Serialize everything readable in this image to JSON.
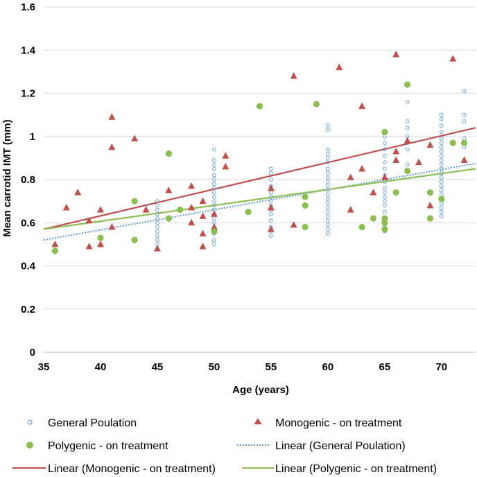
{
  "chart_data": {
    "type": "scatter",
    "title": "",
    "xlabel": "Age (years)",
    "ylabel": "Mean carrotid IMT (mm)",
    "xlim": [
      35,
      73
    ],
    "ylim": [
      0,
      1.6
    ],
    "xticks": [
      "35",
      "40",
      "45",
      "50",
      "55",
      "60",
      "65",
      "70"
    ],
    "yticks": [
      "0",
      "0.2",
      "0.4",
      "0.6",
      "0.8",
      "1",
      "1.2",
      "1.4",
      "1.6"
    ],
    "grid": "horizontal",
    "legend_position": "bottom",
    "colors": {
      "general": "#5b9bd5",
      "monogenic": "#c0504d",
      "polygenic": "#8cbe52",
      "grid": "#d9d9d9"
    },
    "series": [
      {
        "name": "General Poulation",
        "marker": "open-circle",
        "points": [
          [
            45,
            0.48
          ],
          [
            45,
            0.5
          ],
          [
            45,
            0.52
          ],
          [
            45,
            0.54
          ],
          [
            45,
            0.56
          ],
          [
            45,
            0.58
          ],
          [
            45,
            0.6
          ],
          [
            45,
            0.62
          ],
          [
            45,
            0.64
          ],
          [
            45,
            0.66
          ],
          [
            45,
            0.68
          ],
          [
            45,
            0.7
          ],
          [
            50,
            0.5
          ],
          [
            50,
            0.52
          ],
          [
            50,
            0.55
          ],
          [
            50,
            0.57
          ],
          [
            50,
            0.6
          ],
          [
            50,
            0.62
          ],
          [
            50,
            0.64
          ],
          [
            50,
            0.66
          ],
          [
            50,
            0.68
          ],
          [
            50,
            0.7
          ],
          [
            50,
            0.72
          ],
          [
            50,
            0.74
          ],
          [
            50,
            0.76
          ],
          [
            50,
            0.78
          ],
          [
            50,
            0.8
          ],
          [
            50,
            0.82
          ],
          [
            50,
            0.85
          ],
          [
            50,
            0.87
          ],
          [
            50,
            0.89
          ],
          [
            50,
            0.94
          ],
          [
            55,
            0.54
          ],
          [
            55,
            0.56
          ],
          [
            55,
            0.58
          ],
          [
            55,
            0.61
          ],
          [
            55,
            0.64
          ],
          [
            55,
            0.66
          ],
          [
            55,
            0.68
          ],
          [
            55,
            0.7
          ],
          [
            55,
            0.72
          ],
          [
            55,
            0.74
          ],
          [
            55,
            0.77
          ],
          [
            55,
            0.8
          ],
          [
            55,
            0.83
          ],
          [
            55,
            0.85
          ],
          [
            60,
            0.55
          ],
          [
            60,
            0.57
          ],
          [
            60,
            0.59
          ],
          [
            60,
            0.61
          ],
          [
            60,
            0.63
          ],
          [
            60,
            0.65
          ],
          [
            60,
            0.67
          ],
          [
            60,
            0.69
          ],
          [
            60,
            0.71
          ],
          [
            60,
            0.73
          ],
          [
            60,
            0.75
          ],
          [
            60,
            0.77
          ],
          [
            60,
            0.79
          ],
          [
            60,
            0.81
          ],
          [
            60,
            0.83
          ],
          [
            60,
            0.85
          ],
          [
            60,
            0.88
          ],
          [
            60,
            0.9
          ],
          [
            60,
            0.92
          ],
          [
            60,
            0.94
          ],
          [
            60,
            1.03
          ],
          [
            60,
            1.05
          ],
          [
            65,
            0.56
          ],
          [
            65,
            0.58
          ],
          [
            65,
            0.6
          ],
          [
            65,
            0.62
          ],
          [
            65,
            0.65
          ],
          [
            65,
            0.68
          ],
          [
            65,
            0.7
          ],
          [
            65,
            0.72
          ],
          [
            65,
            0.74
          ],
          [
            65,
            0.76
          ],
          [
            65,
            0.79
          ],
          [
            65,
            0.82
          ],
          [
            65,
            0.85
          ],
          [
            65,
            0.88
          ],
          [
            65,
            0.91
          ],
          [
            65,
            0.94
          ],
          [
            65,
            0.97
          ],
          [
            65,
            1.0
          ],
          [
            67,
            0.87
          ],
          [
            67,
            0.94
          ],
          [
            67,
            0.97
          ],
          [
            67,
            1.0
          ],
          [
            67,
            1.04
          ],
          [
            67,
            1.07
          ],
          [
            67,
            1.16
          ],
          [
            70,
            0.63
          ],
          [
            70,
            0.65
          ],
          [
            70,
            0.67
          ],
          [
            70,
            0.69
          ],
          [
            70,
            0.71
          ],
          [
            70,
            0.73
          ],
          [
            70,
            0.75
          ],
          [
            70,
            0.77
          ],
          [
            70,
            0.79
          ],
          [
            70,
            0.81
          ],
          [
            70,
            0.83
          ],
          [
            70,
            0.85
          ],
          [
            70,
            0.87
          ],
          [
            70,
            0.89
          ],
          [
            70,
            0.91
          ],
          [
            70,
            0.93
          ],
          [
            70,
            0.95
          ],
          [
            70,
            0.97
          ],
          [
            70,
            0.99
          ],
          [
            70,
            1.02
          ],
          [
            70,
            1.05
          ],
          [
            70,
            1.08
          ],
          [
            70,
            1.1
          ],
          [
            72,
            0.95
          ],
          [
            72,
            0.99
          ],
          [
            72,
            1.07
          ],
          [
            72,
            1.1
          ],
          [
            72,
            1.21
          ]
        ]
      },
      {
        "name": "Monogenic - on treatment",
        "marker": "triangle",
        "points": [
          [
            36,
            0.5
          ],
          [
            37,
            0.67
          ],
          [
            38,
            0.74
          ],
          [
            39,
            0.49
          ],
          [
            39,
            0.61
          ],
          [
            40,
            0.5
          ],
          [
            40,
            0.66
          ],
          [
            41,
            0.58
          ],
          [
            41,
            0.95
          ],
          [
            41,
            1.09
          ],
          [
            43,
            0.99
          ],
          [
            44,
            0.66
          ],
          [
            45,
            0.48
          ],
          [
            46,
            0.75
          ],
          [
            48,
            0.6
          ],
          [
            48,
            0.67
          ],
          [
            48,
            0.77
          ],
          [
            49,
            0.49
          ],
          [
            49,
            0.55
          ],
          [
            49,
            0.63
          ],
          [
            49,
            0.7
          ],
          [
            50,
            0.58
          ],
          [
            50,
            0.64
          ],
          [
            51,
            0.86
          ],
          [
            51,
            0.91
          ],
          [
            55,
            0.57
          ],
          [
            55,
            0.67
          ],
          [
            55,
            0.76
          ],
          [
            57,
            0.59
          ],
          [
            57,
            1.28
          ],
          [
            61,
            1.32
          ],
          [
            62,
            0.66
          ],
          [
            62,
            0.81
          ],
          [
            63,
            0.85
          ],
          [
            63,
            1.14
          ],
          [
            64,
            0.74
          ],
          [
            65,
            0.81
          ],
          [
            66,
            0.89
          ],
          [
            66,
            0.93
          ],
          [
            66,
            1.38
          ],
          [
            67,
            0.98
          ],
          [
            68,
            0.88
          ],
          [
            69,
            0.68
          ],
          [
            69,
            0.96
          ],
          [
            71,
            1.36
          ],
          [
            72,
            0.89
          ]
        ]
      },
      {
        "name": "Polygenic - on treatment",
        "marker": "filled-circle",
        "points": [
          [
            36,
            0.47
          ],
          [
            40,
            0.53
          ],
          [
            43,
            0.52
          ],
          [
            43,
            0.7
          ],
          [
            46,
            0.62
          ],
          [
            46,
            0.92
          ],
          [
            47,
            0.66
          ],
          [
            50,
            0.56
          ],
          [
            53,
            0.65
          ],
          [
            54,
            1.14
          ],
          [
            58,
            0.58
          ],
          [
            58,
            0.68
          ],
          [
            58,
            0.72
          ],
          [
            59,
            1.15
          ],
          [
            63,
            0.58
          ],
          [
            64,
            0.62
          ],
          [
            65,
            0.57
          ],
          [
            65,
            0.6
          ],
          [
            65,
            0.62
          ],
          [
            65,
            1.02
          ],
          [
            66,
            0.74
          ],
          [
            67,
            0.84
          ],
          [
            67,
            1.24
          ],
          [
            69,
            0.62
          ],
          [
            69,
            0.74
          ],
          [
            70,
            0.71
          ],
          [
            71,
            0.97
          ],
          [
            72,
            0.97
          ]
        ]
      }
    ],
    "trendlines": [
      {
        "name": "Linear (General Poulation)",
        "series": "General Poulation",
        "style": "dotted",
        "from": [
          35,
          0.52
        ],
        "to": [
          73,
          0.875
        ]
      },
      {
        "name": "Linear (Monogenic - on treatment)",
        "series": "Monogenic - on treatment",
        "style": "solid",
        "from": [
          35,
          0.57
        ],
        "to": [
          73,
          1.04
        ]
      },
      {
        "name": "Linear (Polygenic - on treatment)",
        "series": "Polygenic - on treatment",
        "style": "solid",
        "from": [
          35,
          0.57
        ],
        "to": [
          73,
          0.85
        ]
      }
    ],
    "legend": [
      "General Poulation",
      "Monogenic - on treatment",
      "Polygenic - on treatment",
      "Linear (General Poulation)",
      "Linear (Monogenic - on treatment)",
      "Linear (Polygenic - on treatment)"
    ]
  }
}
